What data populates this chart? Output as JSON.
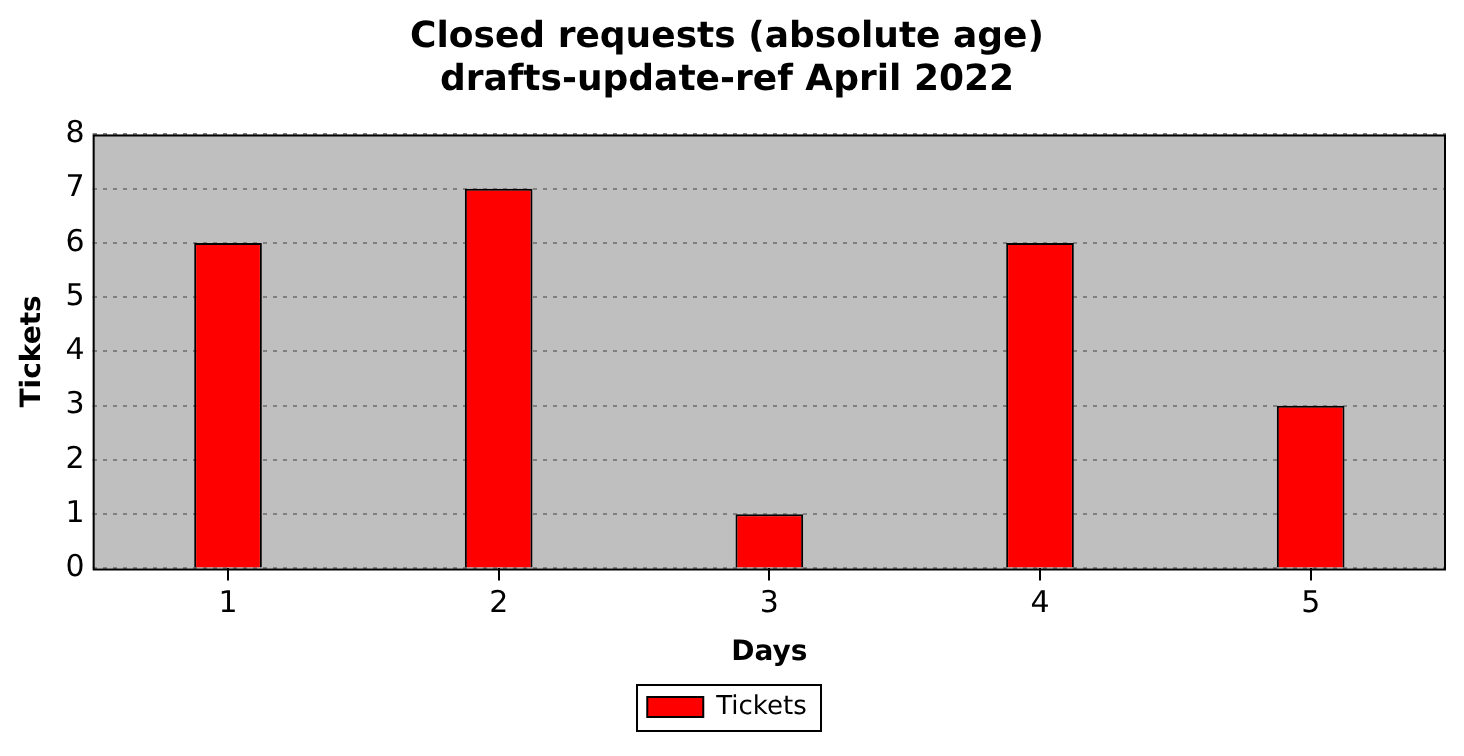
{
  "chart_data": {
    "type": "bar",
    "title": "Closed requests (absolute age)",
    "subtitle": "drafts-update-ref April 2022",
    "xlabel": "Days",
    "ylabel": "Tickets",
    "categories": [
      "1",
      "2",
      "3",
      "4",
      "5"
    ],
    "series": [
      {
        "name": "Tickets",
        "color": "#ff0000",
        "values": [
          6,
          7,
          1,
          6,
          3
        ]
      }
    ],
    "ylim": [
      0,
      8
    ],
    "yticks": [
      0,
      1,
      2,
      3,
      4,
      5,
      6,
      7,
      8
    ],
    "grid": "y",
    "legend": "bottom"
  }
}
